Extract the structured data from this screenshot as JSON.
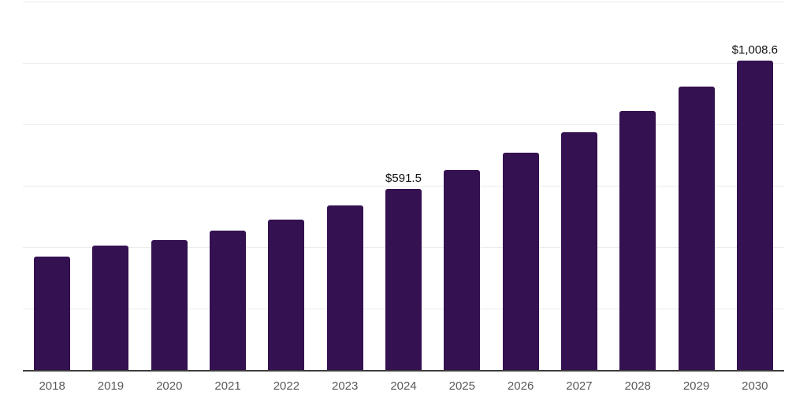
{
  "chart_data": {
    "type": "bar",
    "title": "",
    "xlabel": "",
    "ylabel": "",
    "categories": [
      "2018",
      "2019",
      "2020",
      "2021",
      "2022",
      "2023",
      "2024",
      "2025",
      "2026",
      "2027",
      "2028",
      "2029",
      "2030"
    ],
    "values": [
      368.9,
      404.9,
      424.6,
      454.4,
      491.6,
      536.9,
      591.5,
      651.5,
      709.4,
      774.7,
      842.8,
      923.6,
      1008.6
    ],
    "data_labels": [
      {
        "category": "2024",
        "index": 6,
        "text": "$591.5"
      },
      {
        "category": "2030",
        "index": 12,
        "text": "$1,008.6"
      }
    ],
    "ylim": [
      0,
      1200
    ],
    "gridline_values": [
      200,
      400,
      600,
      800,
      1000,
      1200
    ],
    "grid": true,
    "legend": false,
    "colors": {
      "bar": "#341150",
      "gridline": "#ececec",
      "axis": "#3c3c3c",
      "tick_label": "#595959",
      "data_label": "#111111",
      "background": "#ffffff"
    }
  }
}
